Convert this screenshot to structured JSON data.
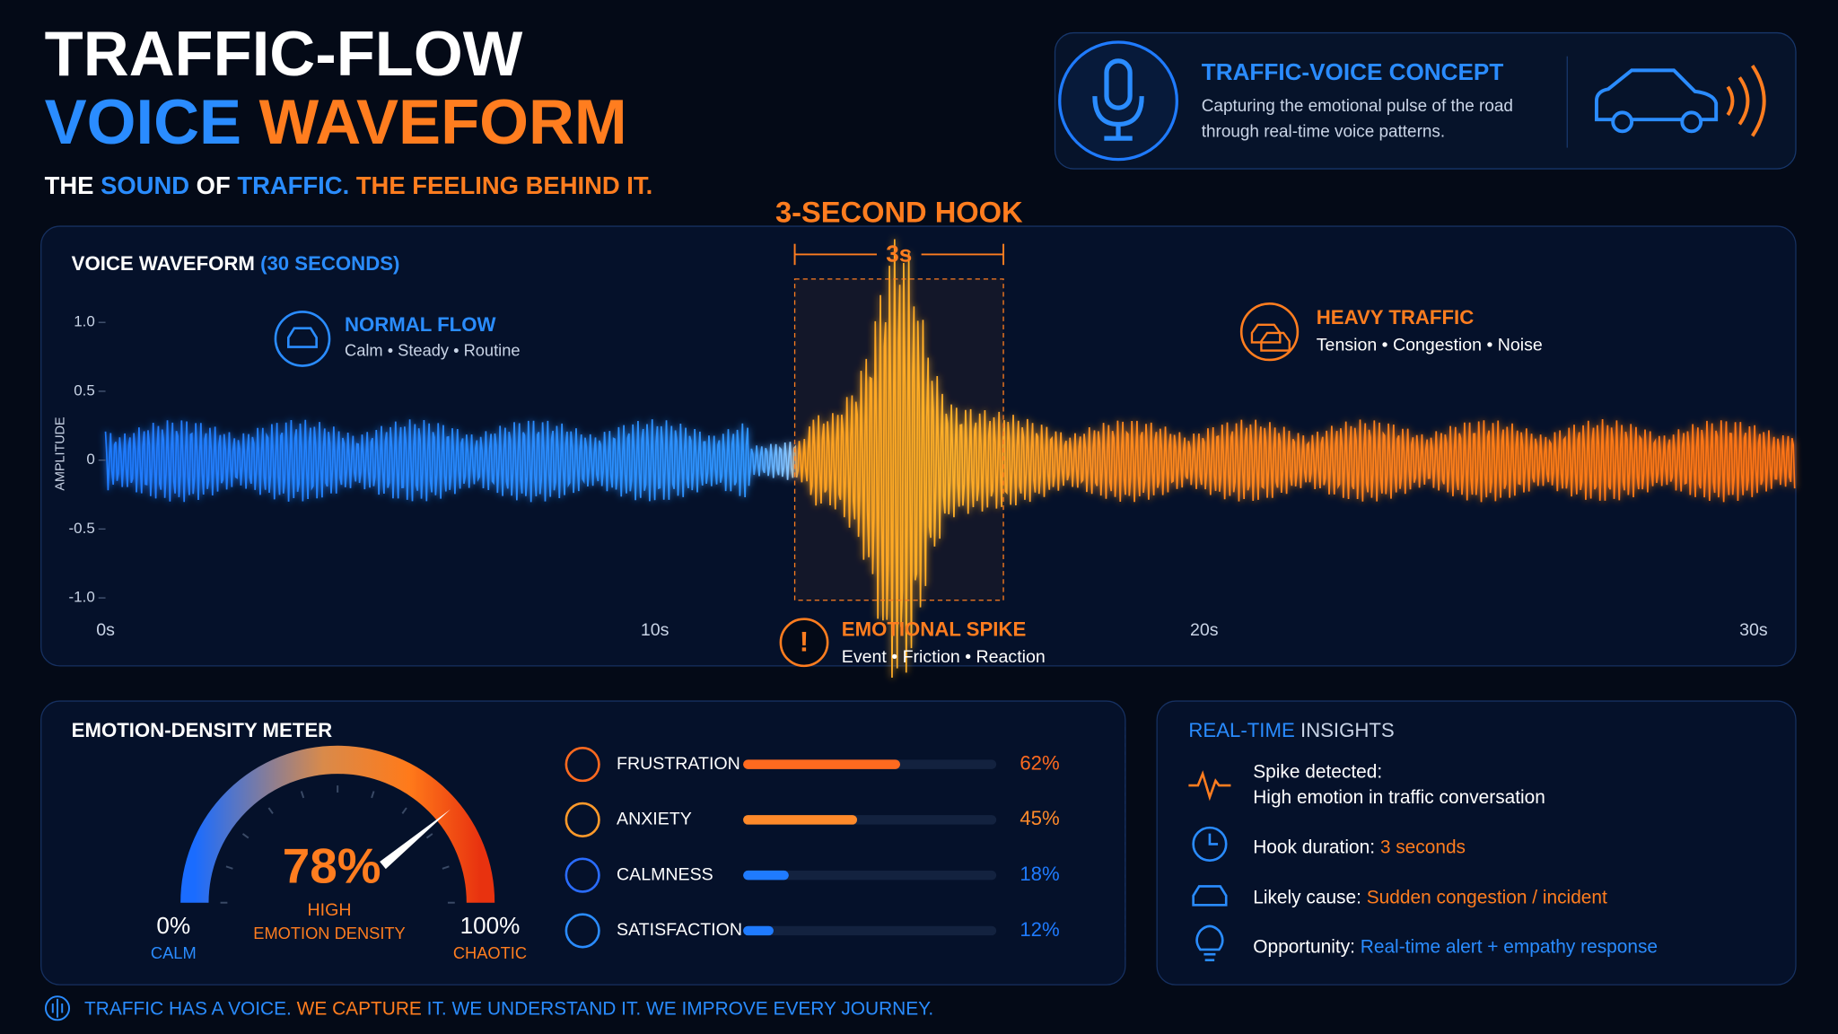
{
  "header": {
    "title_line1": "TRAFFIC-FLOW",
    "title_line2": [
      "VOICE",
      "WAVEFORM"
    ],
    "tagline": [
      "THE",
      "SOUND",
      "OF",
      "TRAFFIC.",
      "THE FEELING BEHIND IT."
    ]
  },
  "concept": {
    "title": "TRAFFIC-VOICE CONCEPT",
    "description": [
      "Capturing the emotional pulse of the road",
      "through real-time voice patterns."
    ]
  },
  "waveform": {
    "title": [
      "VOICE WAVEFORM",
      "(30 SECONDS)"
    ],
    "y_axis_label": "AMPLITUDE",
    "y_ticks": [
      "1.0",
      "0.5",
      "0",
      "-0.5",
      "-1.0"
    ],
    "x_ticks": [
      "0s",
      "10s",
      "20s",
      "30s"
    ],
    "hook": {
      "title": "3-SECOND HOOK",
      "duration": "3s"
    },
    "annotations": [
      {
        "title": "NORMAL FLOW",
        "subtitle": "Calm • Steady • Routine"
      },
      {
        "title": "HEAVY TRAFFIC",
        "subtitle": "Tension • Congestion • Noise"
      },
      {
        "title": "EMOTIONAL SPIKE",
        "subtitle": "Event • Friction • Reaction"
      }
    ]
  },
  "meter": {
    "title": "EMOTION-DENSITY METER",
    "value": 78,
    "value_label": "78%",
    "level": "HIGH",
    "caption": "EMOTION DENSITY",
    "min_label": "0%",
    "min_caption": "CALM",
    "max_label": "100%",
    "max_caption": "CHAOTIC",
    "emotions": [
      {
        "name": "FRUSTRATION",
        "value": 62,
        "label": "62%"
      },
      {
        "name": "ANXIETY",
        "value": 45,
        "label": "45%"
      },
      {
        "name": "CALMNESS",
        "value": 18,
        "label": "18%"
      },
      {
        "name": "SATISFACTION",
        "value": 12,
        "label": "12%"
      }
    ]
  },
  "insights": {
    "title": [
      "REAL-TIME",
      "INSIGHTS"
    ],
    "items": [
      {
        "label": "Spike detected:",
        "text": "High emotion in traffic conversation"
      },
      {
        "label": "Hook duration:",
        "text": "3 seconds"
      },
      {
        "label": "Likely cause:",
        "text": "Sudden congestion / incident"
      },
      {
        "label": "Opportunity:",
        "text": "Real-time alert + empathy response"
      }
    ]
  },
  "footer": [
    "TRAFFIC HAS A VOICE.",
    "WE CAPTURE",
    "IT.",
    "WE UNDERSTAND IT.",
    "WE IMPROVE EVERY JOURNEY."
  ]
}
